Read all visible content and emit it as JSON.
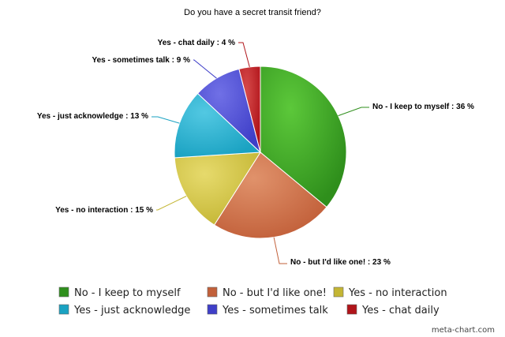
{
  "chart_data": {
    "type": "pie",
    "title": "Do you have a secret transit friend?",
    "slices": [
      {
        "label": "No - I keep to myself",
        "value": 36,
        "slice_label": "No - I keep to myself : 36 %",
        "color": "#2f8f1c",
        "light": "#5cc83a"
      },
      {
        "label": "No - but I'd like one!",
        "value": 23,
        "slice_label": "No - but I'd like one! : 23 %",
        "color": "#c2603a",
        "light": "#e0926b"
      },
      {
        "label": "Yes - no interaction",
        "value": 15,
        "slice_label": "Yes - no interaction : 15 %",
        "color": "#c4b634",
        "light": "#e6da6c"
      },
      {
        "label": "Yes - just acknowledge",
        "value": 13,
        "slice_label": "Yes - just acknowledge : 13 %",
        "color": "#1aa2c2",
        "light": "#52c8e2"
      },
      {
        "label": "Yes - sometimes talk",
        "value": 9,
        "slice_label": "Yes - sometimes talk : 9 %",
        "color": "#3f3fc8",
        "light": "#7070e6"
      },
      {
        "label": "Yes - chat daily",
        "value": 4,
        "slice_label": "Yes - chat daily : 4 %",
        "color": "#b0141a",
        "light": "#d64a4a"
      }
    ],
    "legend_position": "bottom"
  },
  "credit": "meta-chart.com"
}
